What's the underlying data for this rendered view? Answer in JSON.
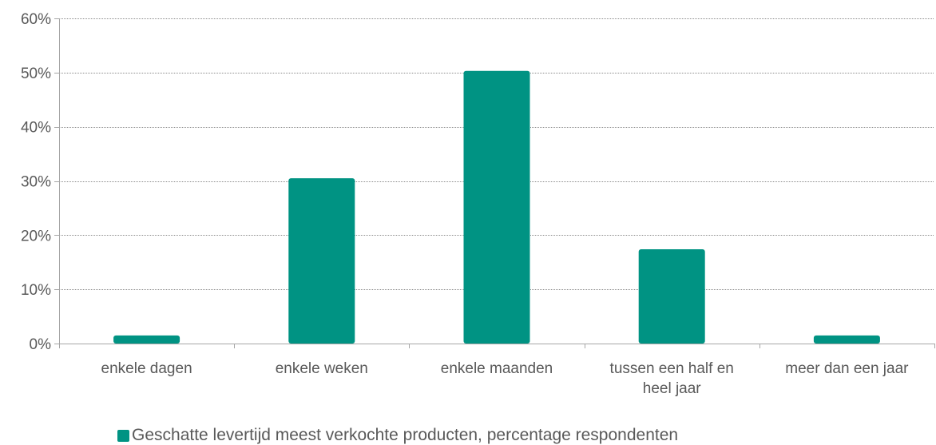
{
  "colors": {
    "bar": "#009383",
    "grid": "#8c8c8c",
    "axis": "#a6a6a6",
    "text": "#595959"
  },
  "chart_data": {
    "type": "bar",
    "categories": [
      [
        "enkele dagen"
      ],
      [
        "enkele weken"
      ],
      [
        "enkele maanden"
      ],
      [
        "tussen een half en",
        "heel jaar"
      ],
      [
        "meer dan een jaar"
      ]
    ],
    "series": [
      {
        "name": "Geschatte levertijd meest verkochte producten, percentage respondenten",
        "values": [
          1.5,
          30.5,
          50.3,
          17.4,
          1.5
        ]
      }
    ],
    "ylim": [
      0,
      60
    ],
    "yticks": [
      0,
      10,
      20,
      30,
      40,
      50,
      60
    ],
    "ytick_labels": [
      "0%",
      "10%",
      "20%",
      "30%",
      "40%",
      "50%",
      "60%"
    ],
    "title": "",
    "xlabel": "",
    "ylabel": "",
    "grid": true,
    "legend_position": "bottom"
  }
}
